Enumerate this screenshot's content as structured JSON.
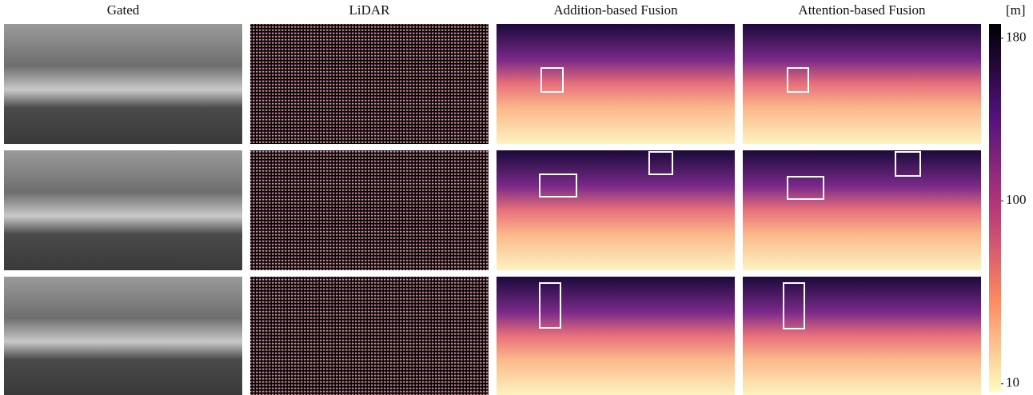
{
  "headers": [
    "Gated",
    "LiDAR",
    "Addition-based Fusion",
    "Attention-based Fusion"
  ],
  "colorbar": {
    "unit": "[m]",
    "lim": [
      6,
      187
    ],
    "ticks": [
      10,
      100,
      180
    ]
  }
}
